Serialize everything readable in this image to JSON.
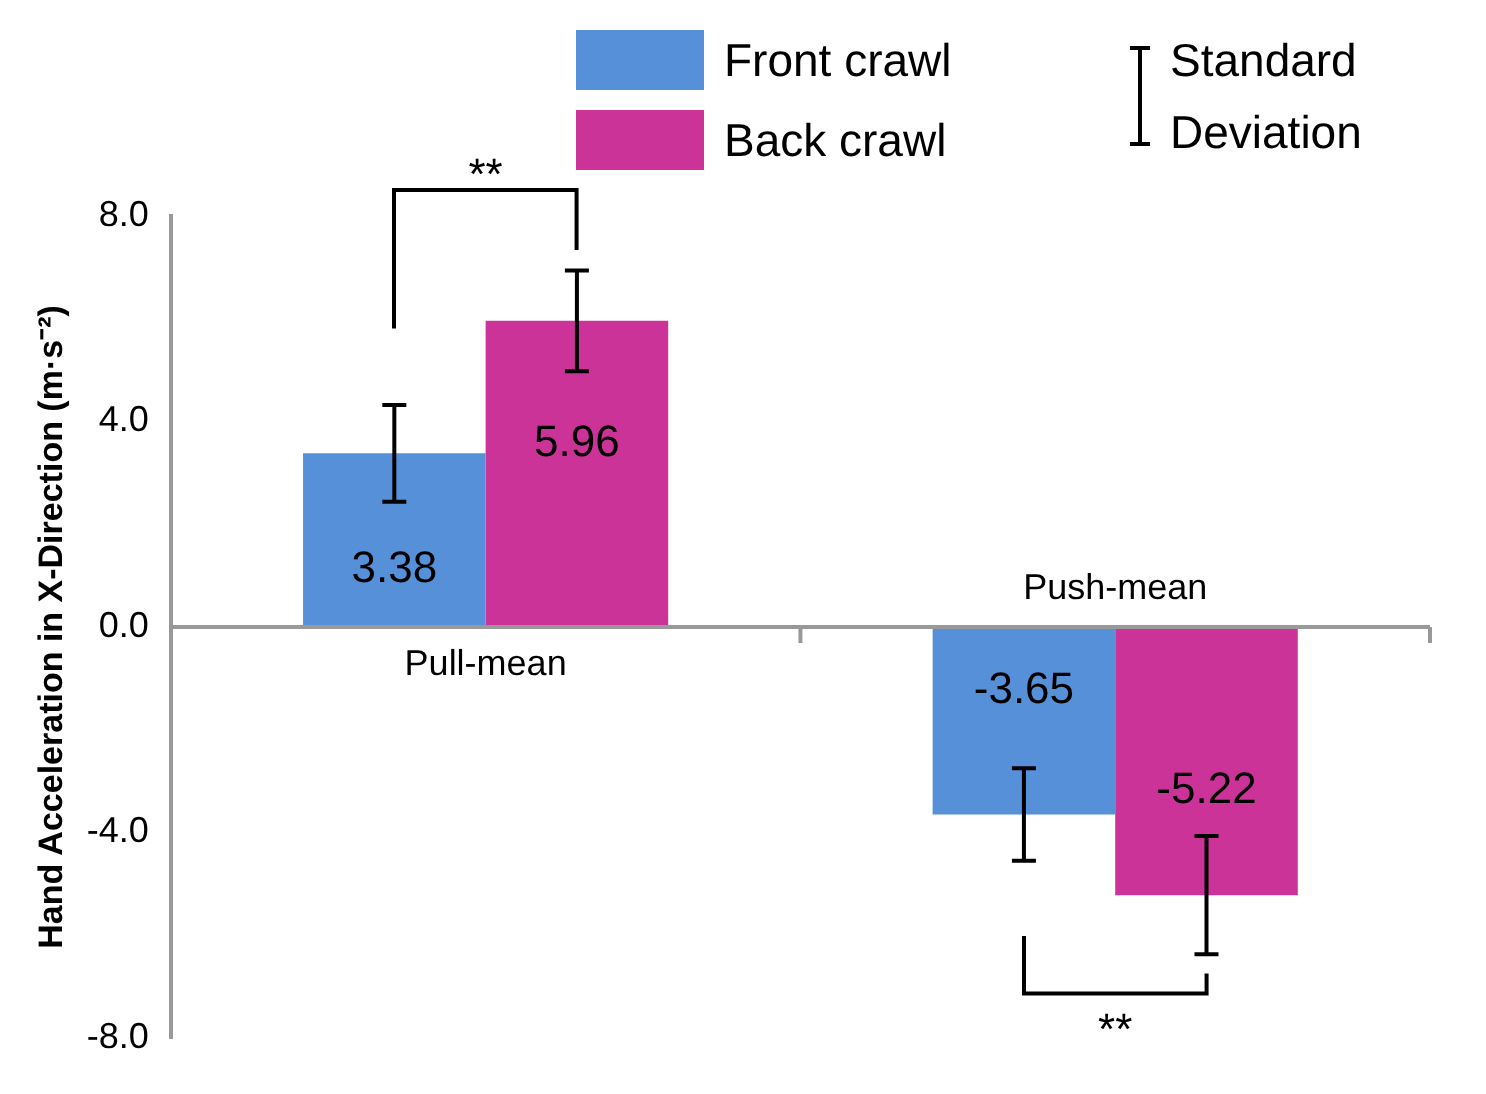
{
  "chart_data": {
    "type": "bar",
    "categories": [
      "Pull-mean",
      "Push-mean"
    ],
    "series": [
      {
        "name": "Front crawl",
        "color": "#5590d8",
        "values": [
          3.38,
          -3.65
        ],
        "errors": [
          0.94,
          0.9
        ]
      },
      {
        "name": "Back crawl",
        "color": "#cc3399",
        "values": [
          5.96,
          -5.22
        ],
        "errors": [
          0.98,
          1.15
        ]
      }
    ],
    "ylabel": "Hand Acceleration in X-Direction (m·s⁻²)",
    "ylim": [
      -8,
      8
    ],
    "yticks": [
      {
        "value": -8,
        "label": "-8.0"
      },
      {
        "value": -4,
        "label": "-4.0"
      },
      {
        "value": 0,
        "label": "0.0"
      },
      {
        "value": 4,
        "label": "4.0"
      },
      {
        "value": 8,
        "label": "8.0"
      }
    ],
    "annotations": [
      "**",
      "**",
      "Standard Deviation"
    ],
    "data_labels": true,
    "legend": "top right"
  }
}
